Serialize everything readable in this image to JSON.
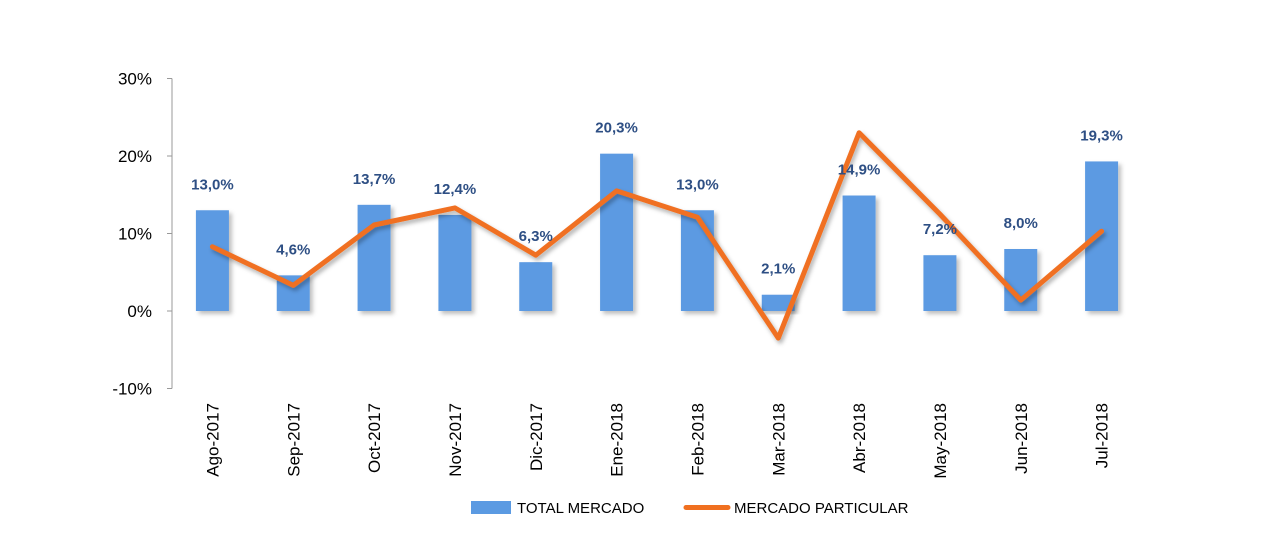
{
  "chart_data": {
    "type": "bar",
    "title": "",
    "xlabel": "",
    "ylabel": "",
    "ylim": [
      -10,
      30
    ],
    "yticks": [
      {
        "value": 30,
        "label": "30%"
      },
      {
        "value": 20,
        "label": "20%"
      },
      {
        "value": 10,
        "label": "10%"
      },
      {
        "value": 0,
        "label": "0%"
      },
      {
        "value": -10,
        "label": "-10%"
      }
    ],
    "categories": [
      "Ago-2017",
      "Sep-2017",
      "Oct-2017",
      "Nov-2017",
      "Dic-2017",
      "Ene-2018",
      "Feb-2018",
      "Mar-2018",
      "Abr-2018",
      "May-2018",
      "Jun-2018",
      "Jul-2018"
    ],
    "series": [
      {
        "name": "TOTAL MERCADO",
        "type": "bar",
        "color": "#5b9ae2",
        "values": [
          13.0,
          4.6,
          13.7,
          12.4,
          6.3,
          20.3,
          13.0,
          2.1,
          14.9,
          7.2,
          8.0,
          19.3
        ],
        "data_labels": [
          "13,0%",
          "4,6%",
          "13,7%",
          "12,4%",
          "6,3%",
          "20,3%",
          "13,0%",
          "2,1%",
          "14,9%",
          "7,2%",
          "8,0%",
          "19,3%"
        ]
      },
      {
        "name": "MERCADO PARTICULAR",
        "type": "line",
        "color": "#f07020",
        "values": [
          8.3,
          3.3,
          11.1,
          13.3,
          7.2,
          15.5,
          12.1,
          -3.5,
          23.0,
          12.5,
          1.4,
          10.3
        ]
      }
    ],
    "legend_position": "bottom-center",
    "colors": {
      "negative_tick": "#e00000",
      "data_label": "#2e4f84",
      "axis": "#999999"
    }
  }
}
